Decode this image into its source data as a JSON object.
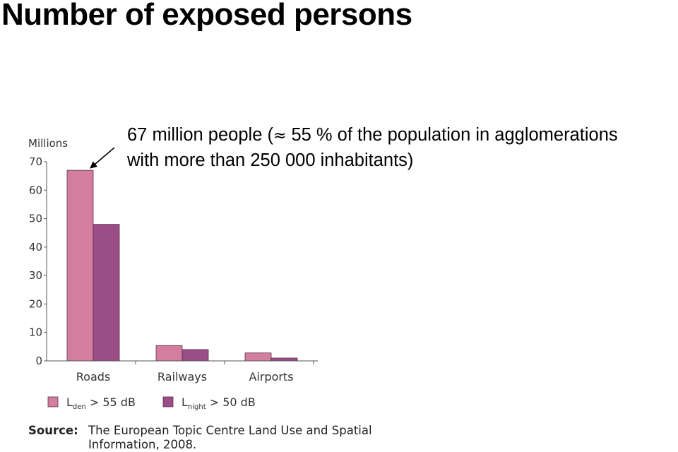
{
  "title": "Number of exposed persons",
  "annotation": {
    "line1_pre": "67 million people (",
    "approx_symbol": "≈",
    "line1_post": " 55 % of the population in agglomerations",
    "line2": "with more than 250 000 inhabitants)"
  },
  "source": {
    "label": "Source:",
    "line1": "The European Topic Centre Land Use and Spatial",
    "line2": "Information, 2008."
  },
  "chart_data": {
    "type": "bar",
    "ylabel": "Millions",
    "ylim": [
      0,
      70
    ],
    "yticks": [
      "0",
      "10",
      "20",
      "30",
      "40",
      "50",
      "60",
      "70"
    ],
    "categories": [
      "Roads",
      "Railways",
      "Airports"
    ],
    "series": [
      {
        "name_main": "L",
        "name_sub": "den",
        "name_rest": " > 55 dB",
        "color": "#d37e9c",
        "values": [
          67,
          5.4,
          2.8
        ]
      },
      {
        "name_main": "L",
        "name_sub": "night",
        "name_rest": " > 50 dB",
        "color": "#9a4d86",
        "values": [
          48,
          4,
          1
        ]
      }
    ],
    "grid": false,
    "legend_position": "bottom-left"
  }
}
